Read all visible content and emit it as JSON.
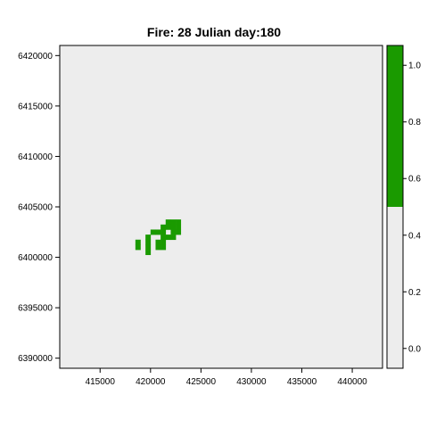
{
  "chart_data": {
    "type": "heatmap",
    "title": "Fire: 28   Julian day:180",
    "xlabel": "",
    "ylabel": "",
    "xlim": [
      411000,
      443000
    ],
    "ylim": [
      6389000,
      6421000
    ],
    "x_ticks": [
      415000,
      420000,
      425000,
      430000,
      435000,
      440000
    ],
    "y_ticks": [
      6390000,
      6395000,
      6400000,
      6405000,
      6410000,
      6415000,
      6420000
    ],
    "cell_size": 500,
    "background_value": 0,
    "burned_cells": [
      [
        421750,
        6403500
      ],
      [
        422250,
        6403500
      ],
      [
        422750,
        6403500
      ],
      [
        421250,
        6403000
      ],
      [
        421750,
        6403000
      ],
      [
        422250,
        6403000
      ],
      [
        422750,
        6403000
      ],
      [
        420250,
        6402500
      ],
      [
        420750,
        6402500
      ],
      [
        421250,
        6402500
      ],
      [
        422250,
        6402500
      ],
      [
        422750,
        6402500
      ],
      [
        419750,
        6402000
      ],
      [
        421250,
        6402000
      ],
      [
        421750,
        6402000
      ],
      [
        422250,
        6402000
      ],
      [
        418750,
        6401500
      ],
      [
        419750,
        6401500
      ],
      [
        420750,
        6401500
      ],
      [
        421250,
        6401500
      ],
      [
        418750,
        6401000
      ],
      [
        419750,
        6401000
      ],
      [
        420750,
        6401000
      ],
      [
        421250,
        6401000
      ],
      [
        419750,
        6400500
      ]
    ],
    "colorbar": {
      "ticks": [
        "0.0",
        "0.2",
        "0.4",
        "0.6",
        "0.8",
        "1.0"
      ],
      "range": [
        -0.07,
        1.07
      ],
      "split_value": 0.5,
      "low_color": "#ededed",
      "high_color": "#1a9a00"
    },
    "colors": {
      "background": "#ededed",
      "burned": "#1a9a00"
    }
  }
}
